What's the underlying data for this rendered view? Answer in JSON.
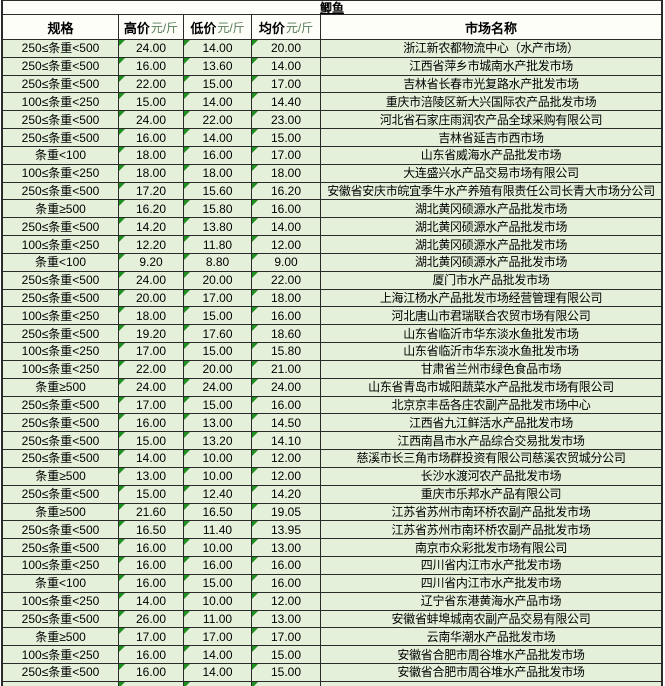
{
  "table": {
    "title": "鲫鱼",
    "columns": [
      {
        "label": "规格",
        "unit": ""
      },
      {
        "label": "高价",
        "unit": "元/斤"
      },
      {
        "label": "低价",
        "unit": "元/斤"
      },
      {
        "label": "均价",
        "unit": "元/斤"
      },
      {
        "label": "市场名称",
        "unit": ""
      }
    ],
    "rows": [
      {
        "spec": "250≤条重<500",
        "high": "24.00",
        "low": "14.00",
        "avg": "20.00",
        "market": "浙江新农都物流中心（水产市场）"
      },
      {
        "spec": "250≤条重<500",
        "high": "16.00",
        "low": "13.60",
        "avg": "14.00",
        "market": "江西省萍乡市城南水产批发市场"
      },
      {
        "spec": "250≤条重<500",
        "high": "22.00",
        "low": "15.00",
        "avg": "17.00",
        "market": "吉林省长春市光复路水产批发市场"
      },
      {
        "spec": "100≤条重<250",
        "high": "15.00",
        "low": "14.00",
        "avg": "14.40",
        "market": "重庆市涪陵区新大兴国际农产品批发市场"
      },
      {
        "spec": "250≤条重<500",
        "high": "24.00",
        "low": "22.00",
        "avg": "23.00",
        "market": "河北省石家庄雨润农产品全球采购有限公司"
      },
      {
        "spec": "250≤条重<500",
        "high": "16.00",
        "low": "14.00",
        "avg": "15.00",
        "market": "吉林省延吉市西市场"
      },
      {
        "spec": "条重<100",
        "high": "18.00",
        "low": "16.00",
        "avg": "17.00",
        "market": "山东省威海水产品批发市场"
      },
      {
        "spec": "100≤条重<250",
        "high": "18.00",
        "low": "18.00",
        "avg": "18.00",
        "market": "大连盛兴水产品交易市场有限公司"
      },
      {
        "spec": "250≤条重<500",
        "high": "17.20",
        "low": "15.60",
        "avg": "16.20",
        "market": "安徽省安庆市皖宜季牛水产养殖有限责任公司长青大市场分公司"
      },
      {
        "spec": "条重≥500",
        "high": "16.20",
        "low": "15.80",
        "avg": "16.00",
        "market": "湖北黄冈硕源水产品批发市场"
      },
      {
        "spec": "250≤条重<500",
        "high": "14.20",
        "low": "13.80",
        "avg": "14.00",
        "market": "湖北黄冈硕源水产品批发市场"
      },
      {
        "spec": "100≤条重<250",
        "high": "12.20",
        "low": "11.80",
        "avg": "12.00",
        "market": "湖北黄冈硕源水产品批发市场"
      },
      {
        "spec": "条重<100",
        "high": "9.20",
        "low": "8.80",
        "avg": "9.00",
        "market": "湖北黄冈硕源水产品批发市场"
      },
      {
        "spec": "250≤条重<500",
        "high": "24.00",
        "low": "20.00",
        "avg": "22.00",
        "market": "厦门市水产品批发市场"
      },
      {
        "spec": "250≤条重<500",
        "high": "20.00",
        "low": "17.00",
        "avg": "18.00",
        "market": "上海江杨水产品批发市场经营管理有限公司"
      },
      {
        "spec": "100≤条重<250",
        "high": "18.00",
        "low": "15.00",
        "avg": "16.00",
        "market": "河北唐山市君瑞联合农贸市场有限公司"
      },
      {
        "spec": "250≤条重<500",
        "high": "19.20",
        "low": "17.60",
        "avg": "18.60",
        "market": "山东省临沂市华东淡水鱼批发市场"
      },
      {
        "spec": "100≤条重<250",
        "high": "17.00",
        "low": "15.00",
        "avg": "15.80",
        "market": "山东省临沂市华东淡水鱼批发市场"
      },
      {
        "spec": "100≤条重<250",
        "high": "22.00",
        "low": "20.00",
        "avg": "21.00",
        "market": "甘肃省兰州市绿色食品市场"
      },
      {
        "spec": "条重≥500",
        "high": "24.00",
        "low": "24.00",
        "avg": "24.00",
        "market": "山东省青岛市城阳蔬菜水产品批发市场有限公司"
      },
      {
        "spec": "250≤条重<500",
        "high": "17.00",
        "low": "15.00",
        "avg": "16.00",
        "market": "北京京丰岳各庄农副产品批发市场中心"
      },
      {
        "spec": "250≤条重<500",
        "high": "16.00",
        "low": "13.00",
        "avg": "14.50",
        "market": "江西省九江鲜活水产品批发市场"
      },
      {
        "spec": "250≤条重<500",
        "high": "15.00",
        "low": "13.20",
        "avg": "14.10",
        "market": "江西南昌市水产品综合交易批发市场"
      },
      {
        "spec": "250≤条重<500",
        "high": "14.00",
        "low": "10.00",
        "avg": "12.00",
        "market": "慈溪市长三角市场群投资有限公司慈溪农贸城分公司"
      },
      {
        "spec": "条重≥500",
        "high": "13.00",
        "low": "10.00",
        "avg": "12.00",
        "market": "长沙水渡河农产品批发市场"
      },
      {
        "spec": "250≤条重<500",
        "high": "15.00",
        "low": "12.40",
        "avg": "14.20",
        "market": "重庆市乐邦水产品有限公司"
      },
      {
        "spec": "条重≥500",
        "high": "21.60",
        "low": "16.50",
        "avg": "19.05",
        "market": "江苏省苏州市南环桥农副产品批发市场"
      },
      {
        "spec": "250≤条重<500",
        "high": "16.50",
        "low": "11.40",
        "avg": "13.95",
        "market": "江苏省苏州市南环桥农副产品批发市场"
      },
      {
        "spec": "250≤条重<500",
        "high": "16.00",
        "low": "10.00",
        "avg": "13.00",
        "market": "南京市众彩批发市场有限公司"
      },
      {
        "spec": "100≤条重<250",
        "high": "16.00",
        "low": "16.00",
        "avg": "16.00",
        "market": "四川省内江市水产批发市场"
      },
      {
        "spec": "条重<100",
        "high": "16.00",
        "low": "15.00",
        "avg": "16.00",
        "market": "四川省内江市水产批发市场"
      },
      {
        "spec": "100≤条重<250",
        "high": "14.00",
        "low": "10.00",
        "avg": "12.00",
        "market": "辽宁省东港黄海水产品市场"
      },
      {
        "spec": "250≤条重<500",
        "high": "26.00",
        "low": "11.00",
        "avg": "13.00",
        "market": "安徽省蚌埠城南农副产品交易有限公司"
      },
      {
        "spec": "条重≥500",
        "high": "17.00",
        "low": "17.00",
        "avg": "17.00",
        "market": "云南华潮水产品批发市场"
      },
      {
        "spec": "100≤条重<250",
        "high": "16.00",
        "low": "14.00",
        "avg": "15.00",
        "market": "安徽省合肥市周谷堆水产品批发市场"
      },
      {
        "spec": "250≤条重<500",
        "high": "16.00",
        "low": "14.00",
        "avg": "15.00",
        "market": "安徽省合肥市周谷堆水产品批发市场"
      }
    ],
    "partial_row_visible": true,
    "colors": {
      "cell_background": "#e4f0da",
      "header_background": "#fdfef8",
      "grid_line": "#2b2b2b",
      "corner_marker_green": "#1f8f1f",
      "unit_text_green": "#567a56"
    }
  }
}
